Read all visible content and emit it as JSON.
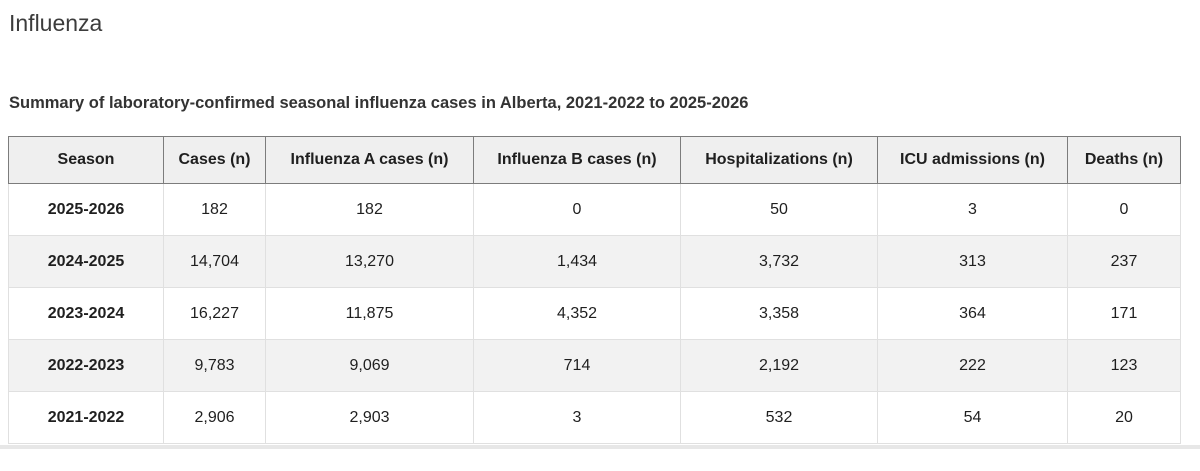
{
  "page": {
    "title": "Influenza",
    "caption": "Summary of laboratory-confirmed seasonal influenza cases in Alberta, 2021-2022 to 2025-2026"
  },
  "table": {
    "columns": [
      "Season",
      "Cases (n)",
      "Influenza A cases (n)",
      "Influenza B cases (n)",
      "Hospitalizations (n)",
      "ICU admissions (n)",
      "Deaths (n)"
    ],
    "rows": [
      [
        "2025-2026",
        "182",
        "182",
        "0",
        "50",
        "3",
        "0"
      ],
      [
        "2024-2025",
        "14,704",
        "13,270",
        "1,434",
        "3,732",
        "313",
        "237"
      ],
      [
        "2023-2024",
        "16,227",
        "11,875",
        "4,352",
        "3,358",
        "364",
        "171"
      ],
      [
        "2022-2023",
        "9,783",
        "9,069",
        "714",
        "2,192",
        "222",
        "123"
      ],
      [
        "2021-2022",
        "2,906",
        "2,903",
        "3",
        "532",
        "54",
        "20"
      ]
    ]
  },
  "colors": {
    "header_background": "#efefef",
    "header_border": "#7c7c7c",
    "body_border": "#e0e0e0",
    "striped_row_background": "#f2f2f2",
    "text": "#1f1f1f"
  }
}
